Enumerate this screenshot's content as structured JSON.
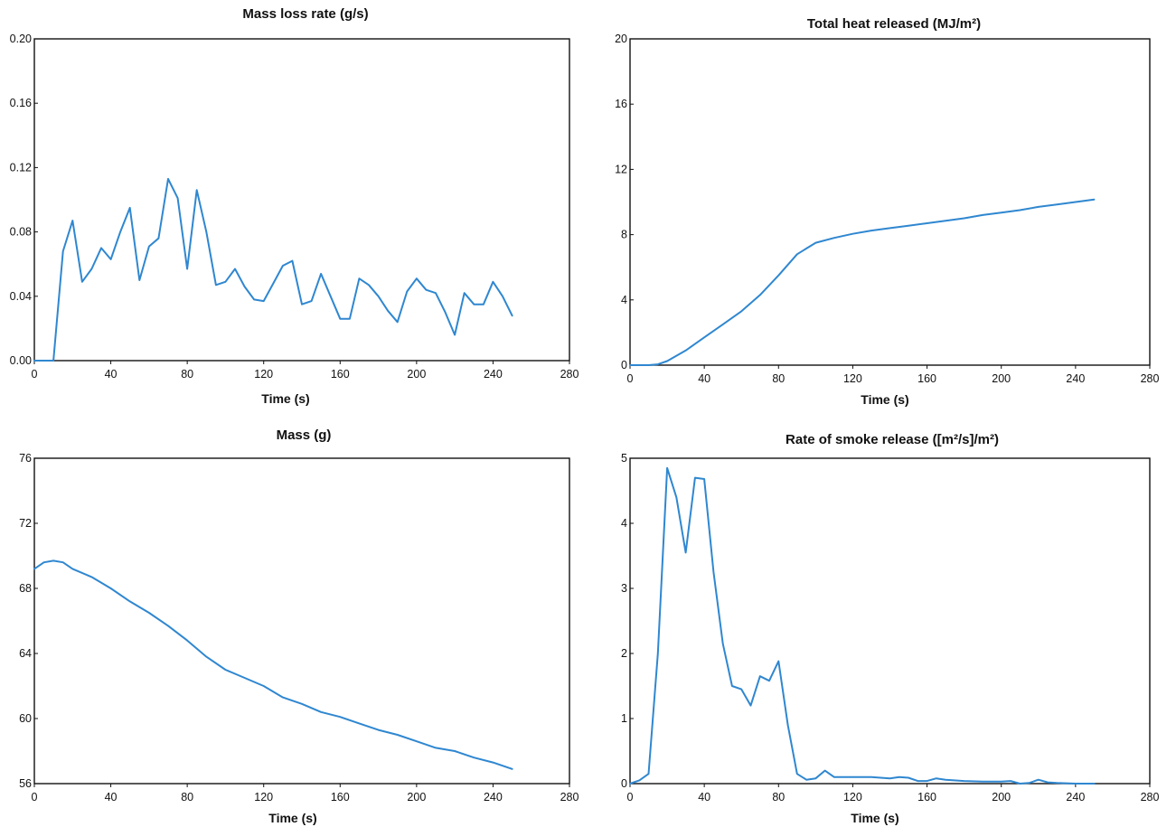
{
  "colors": {
    "series": "#2f87d0",
    "frame": "#111111",
    "background": "#ffffff"
  },
  "chart_data": [
    {
      "id": "mass-loss-rate",
      "type": "line",
      "title": "Mass loss rate (g/s)",
      "xlabel": "Time (s)",
      "ylabel": "",
      "xlim": [
        0,
        280
      ],
      "ylim": [
        0,
        0.2
      ],
      "xticks": [
        "0",
        "40",
        "80",
        "120",
        "160",
        "200",
        "240",
        "280"
      ],
      "yticks": [
        "0.00",
        "0.04",
        "0.08",
        "0.12",
        "0.16",
        "0.20"
      ],
      "grid": false,
      "x": [
        0,
        5,
        10,
        15,
        20,
        25,
        30,
        35,
        40,
        45,
        50,
        55,
        60,
        65,
        70,
        75,
        80,
        85,
        90,
        95,
        100,
        105,
        110,
        115,
        120,
        125,
        130,
        135,
        140,
        145,
        150,
        155,
        160,
        165,
        170,
        175,
        180,
        185,
        190,
        195,
        200,
        205,
        210,
        215,
        220,
        225,
        230,
        235,
        240,
        245,
        250
      ],
      "series": [
        {
          "values": [
            0,
            0,
            0,
            0.068,
            0.087,
            0.049,
            0.057,
            0.07,
            0.063,
            0.08,
            0.095,
            0.05,
            0.071,
            0.076,
            0.113,
            0.101,
            0.057,
            0.106,
            0.08,
            0.047,
            0.049,
            0.057,
            0.046,
            0.038,
            0.037,
            0.048,
            0.059,
            0.062,
            0.035,
            0.037,
            0.054,
            0.04,
            0.026,
            0.026,
            0.051,
            0.047,
            0.04,
            0.031,
            0.024,
            0.043,
            0.051,
            0.044,
            0.042,
            0.03,
            0.016,
            0.042,
            0.035,
            0.035,
            0.049,
            0.04,
            0.028
          ]
        }
      ]
    },
    {
      "id": "total-heat-released",
      "type": "line",
      "title": "Total heat released (MJ/m²)",
      "xlabel": "Time (s)",
      "ylabel": "",
      "xlim": [
        0,
        280
      ],
      "ylim": [
        0,
        20
      ],
      "xticks": [
        "0",
        "40",
        "80",
        "120",
        "160",
        "200",
        "240",
        "280"
      ],
      "yticks": [
        "0",
        "4",
        "8",
        "12",
        "16",
        "20"
      ],
      "grid": false,
      "x": [
        0,
        10,
        15,
        20,
        30,
        40,
        50,
        60,
        70,
        80,
        90,
        100,
        110,
        120,
        130,
        140,
        150,
        160,
        170,
        180,
        190,
        200,
        210,
        220,
        230,
        240,
        250
      ],
      "series": [
        {
          "values": [
            0,
            0,
            0.05,
            0.25,
            0.9,
            1.7,
            2.5,
            3.3,
            4.3,
            5.5,
            6.8,
            7.5,
            7.8,
            8.05,
            8.25,
            8.4,
            8.55,
            8.7,
            8.85,
            9.0,
            9.2,
            9.35,
            9.5,
            9.7,
            9.85,
            10.0,
            10.15
          ]
        }
      ]
    },
    {
      "id": "mass",
      "type": "line",
      "title": "Mass (g)",
      "xlabel": "Time (s)",
      "ylabel": "",
      "xlim": [
        0,
        280
      ],
      "ylim": [
        56,
        76
      ],
      "xticks": [
        "0",
        "40",
        "80",
        "120",
        "160",
        "200",
        "240",
        "280"
      ],
      "yticks": [
        "56",
        "60",
        "64",
        "68",
        "72",
        "76"
      ],
      "grid": false,
      "x": [
        0,
        5,
        10,
        15,
        20,
        30,
        40,
        50,
        60,
        70,
        80,
        90,
        100,
        110,
        120,
        130,
        140,
        150,
        160,
        170,
        180,
        190,
        200,
        210,
        220,
        230,
        240,
        250
      ],
      "series": [
        {
          "values": [
            69.2,
            69.6,
            69.7,
            69.6,
            69.2,
            68.7,
            68.0,
            67.2,
            66.5,
            65.7,
            64.8,
            63.8,
            63.0,
            62.5,
            62.0,
            61.3,
            60.9,
            60.4,
            60.1,
            59.7,
            59.3,
            59.0,
            58.6,
            58.2,
            58.0,
            57.6,
            57.3,
            56.9
          ]
        }
      ]
    },
    {
      "id": "rate-of-smoke-release",
      "type": "line",
      "title": "Rate of smoke release ([m²/s]/m²)",
      "xlabel": "Time (s)",
      "ylabel": "",
      "xlim": [
        0,
        280
      ],
      "ylim": [
        0,
        5
      ],
      "xticks": [
        "0",
        "40",
        "80",
        "120",
        "160",
        "200",
        "240",
        "280"
      ],
      "yticks": [
        "0",
        "1",
        "2",
        "3",
        "4",
        "5"
      ],
      "grid": false,
      "x": [
        0,
        5,
        10,
        15,
        20,
        25,
        30,
        35,
        40,
        45,
        50,
        55,
        60,
        65,
        70,
        75,
        80,
        85,
        90,
        95,
        100,
        105,
        110,
        120,
        130,
        140,
        145,
        150,
        155,
        160,
        165,
        170,
        180,
        190,
        200,
        205,
        210,
        215,
        220,
        225,
        230,
        240,
        250
      ],
      "series": [
        {
          "values": [
            0,
            0.05,
            0.15,
            2.0,
            4.85,
            4.4,
            3.55,
            4.7,
            4.68,
            3.25,
            2.15,
            1.5,
            1.45,
            1.2,
            1.65,
            1.58,
            1.88,
            0.9,
            0.15,
            0.06,
            0.08,
            0.2,
            0.1,
            0.1,
            0.1,
            0.08,
            0.1,
            0.09,
            0.04,
            0.04,
            0.08,
            0.06,
            0.04,
            0.03,
            0.03,
            0.04,
            0.0,
            0.01,
            0.06,
            0.02,
            0.01,
            0.0,
            0.0
          ]
        }
      ]
    }
  ]
}
